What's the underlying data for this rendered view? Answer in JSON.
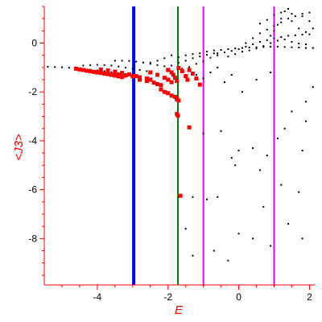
{
  "chart_data": {
    "type": "scatter",
    "xlabel": "E",
    "ylabel": "<J3>",
    "xlim": [
      -5.5,
      2.15
    ],
    "ylim": [
      -9.9,
      1.5
    ],
    "grid": false,
    "x_ticks": [
      -4,
      -2,
      0,
      2
    ],
    "x_tick_labels": [
      "-4",
      "-2",
      "0",
      "2"
    ],
    "y_ticks": [
      0,
      -2,
      -4,
      -6,
      -8
    ],
    "y_tick_labels": [
      "0",
      "-2",
      "-4",
      "-6",
      "-8"
    ],
    "vertical_lines": [
      {
        "x": -2.97,
        "color": "#0000ff",
        "width": "thick"
      },
      {
        "x": -1.72,
        "color": "#008000",
        "width": "normal"
      },
      {
        "x": -1.0,
        "color": "#ee00ee",
        "width": "normal"
      },
      {
        "x": 1.0,
        "color": "#ee00ee",
        "width": "normal"
      }
    ],
    "series": [
      {
        "color": "#000000",
        "marker": "small-dot",
        "points": [
          [
            -5.4,
            -0.97
          ],
          [
            -5.2,
            -0.98
          ],
          [
            -5.0,
            -0.99
          ],
          [
            -4.8,
            -1.01
          ],
          [
            -4.6,
            -1.03
          ],
          [
            -4.4,
            -1.06
          ],
          [
            -4.2,
            -1.09
          ],
          [
            -4.0,
            -1.12
          ],
          [
            -3.8,
            -1.15
          ],
          [
            -3.6,
            -1.19
          ],
          [
            -3.4,
            -1.23
          ],
          [
            -3.2,
            -1.27
          ],
          [
            -3.0,
            -1.31
          ],
          [
            -2.8,
            -1.35
          ],
          [
            -4.4,
            -0.92
          ],
          [
            -4.2,
            -0.9
          ],
          [
            -4.0,
            -0.89
          ],
          [
            -3.8,
            -0.9
          ],
          [
            -3.6,
            -0.92
          ],
          [
            -3.4,
            -0.96
          ],
          [
            -3.2,
            -1.0
          ],
          [
            -3.0,
            -1.05
          ],
          [
            -2.8,
            -1.1
          ],
          [
            -2.6,
            -1.15
          ],
          [
            -3.5,
            -0.72
          ],
          [
            -3.3,
            -0.72
          ],
          [
            -3.1,
            -0.73
          ],
          [
            -2.9,
            -0.76
          ],
          [
            -2.7,
            -0.8
          ],
          [
            -2.5,
            -0.85
          ],
          [
            -2.3,
            -0.9
          ],
          [
            -2.1,
            -0.95
          ],
          [
            -2.5,
            -0.8
          ],
          [
            -2.3,
            -0.72
          ],
          [
            -2.1,
            -0.62
          ],
          [
            -1.9,
            -0.5
          ],
          [
            -1.7,
            -0.58
          ],
          [
            -1.5,
            -0.5
          ],
          [
            -1.3,
            -0.45
          ],
          [
            -1.1,
            -0.42
          ],
          [
            -1.9,
            -0.92
          ],
          [
            -1.7,
            -0.8
          ],
          [
            -1.5,
            -0.72
          ],
          [
            -1.3,
            -0.62
          ],
          [
            -1.1,
            -0.55
          ],
          [
            -0.9,
            -0.48
          ],
          [
            -0.7,
            -0.42
          ],
          [
            -1.6,
            -1.05
          ],
          [
            -1.4,
            -0.98
          ],
          [
            -1.2,
            -0.85
          ],
          [
            -1.0,
            -0.75
          ],
          [
            -0.8,
            -0.6
          ],
          [
            -0.6,
            -0.5
          ],
          [
            -0.9,
            -0.35
          ],
          [
            -0.7,
            -0.3
          ],
          [
            -0.5,
            -0.28
          ],
          [
            -0.3,
            -0.25
          ],
          [
            -0.1,
            -0.22
          ],
          [
            0.1,
            -0.2
          ],
          [
            0.3,
            -0.18
          ],
          [
            0.5,
            -0.17
          ],
          [
            0.7,
            -0.16
          ],
          [
            0.9,
            -0.15
          ],
          [
            1.1,
            -0.15
          ],
          [
            1.3,
            -0.16
          ],
          [
            1.5,
            -0.17
          ],
          [
            1.7,
            -0.18
          ],
          [
            1.9,
            -0.2
          ],
          [
            2.1,
            -0.2
          ],
          [
            -0.6,
            -0.42
          ],
          [
            -0.4,
            -0.38
          ],
          [
            -0.2,
            -0.32
          ],
          [
            0.0,
            -0.25
          ],
          [
            0.2,
            -0.15
          ],
          [
            0.4,
            -0.05
          ],
          [
            0.6,
            0.05
          ],
          [
            0.8,
            0.12
          ],
          [
            1.0,
            0.2
          ],
          [
            1.2,
            0.25
          ],
          [
            1.4,
            0.3
          ],
          [
            1.6,
            0.32
          ],
          [
            1.8,
            0.35
          ],
          [
            2.0,
            0.36
          ],
          [
            -0.3,
            -0.55
          ],
          [
            -0.1,
            -0.45
          ],
          [
            0.1,
            -0.35
          ],
          [
            0.3,
            -0.3
          ],
          [
            0.5,
            -0.22
          ],
          [
            0.7,
            -0.12
          ],
          [
            0.9,
            0.0
          ],
          [
            1.1,
            0.1
          ],
          [
            1.3,
            0.15
          ],
          [
            1.5,
            0.05
          ],
          [
            1.7,
            -0.02
          ],
          [
            1.9,
            -0.05
          ],
          [
            0.2,
            0.0
          ],
          [
            0.4,
            0.2
          ],
          [
            0.6,
            0.4
          ],
          [
            0.8,
            0.55
          ],
          [
            1.0,
            0.7
          ],
          [
            1.2,
            0.85
          ],
          [
            1.4,
            1.0
          ],
          [
            1.6,
            1.1
          ],
          [
            1.8,
            1.2
          ],
          [
            2.0,
            1.25
          ],
          [
            0.9,
            0.3
          ],
          [
            1.0,
            0.5
          ],
          [
            1.1,
            0.75
          ],
          [
            1.2,
            1.0
          ],
          [
            1.3,
            1.3
          ],
          [
            1.4,
            1.4
          ],
          [
            1.5,
            0.9
          ],
          [
            1.7,
            0.6
          ],
          [
            1.9,
            0.45
          ],
          [
            2.1,
            0.6
          ],
          [
            0.6,
            0.8
          ],
          [
            0.8,
            0.95
          ],
          [
            1.0,
            1.15
          ],
          [
            1.2,
            1.25
          ],
          [
            1.5,
            1.2
          ],
          [
            1.8,
            1.1
          ],
          [
            2.0,
            0.9
          ],
          [
            -1.2,
            -1.3
          ],
          [
            -1.0,
            -1.45
          ],
          [
            -0.8,
            -1.2
          ],
          [
            -0.6,
            -1.0
          ],
          [
            -0.4,
            -1.6
          ],
          [
            -0.2,
            -1.3
          ],
          [
            0.1,
            -2.0
          ],
          [
            0.5,
            -1.5
          ],
          [
            0.9,
            -1.2
          ],
          [
            1.5,
            -2.8
          ],
          [
            1.9,
            -2.4
          ],
          [
            2.1,
            -1.8
          ],
          [
            -1.0,
            -3.7
          ],
          [
            -0.5,
            -3.6
          ],
          [
            -0.2,
            -4.7
          ],
          [
            -0.1,
            -5.0
          ],
          [
            0.0,
            -4.4
          ],
          [
            0.4,
            -4.3
          ],
          [
            0.8,
            -4.6
          ],
          [
            1.1,
            -3.9
          ],
          [
            1.3,
            -3.5
          ],
          [
            1.8,
            -4.4
          ],
          [
            1.9,
            -3.2
          ],
          [
            -1.7,
            -6.3
          ],
          [
            -1.3,
            -6.3
          ],
          [
            -0.9,
            -6.4
          ],
          [
            -0.6,
            -6.3
          ],
          [
            0.6,
            -5.2
          ],
          [
            0.7,
            -6.7
          ],
          [
            1.2,
            -5.8
          ],
          [
            1.7,
            -6.1
          ],
          [
            -1.5,
            -7.6
          ],
          [
            -1.3,
            -8.7
          ],
          [
            -0.7,
            -8.5
          ],
          [
            -0.3,
            -8.9
          ],
          [
            0.0,
            -7.8
          ],
          [
            0.4,
            -8.0
          ],
          [
            0.9,
            -8.3
          ],
          [
            1.4,
            -7.4
          ],
          [
            1.8,
            -8.0
          ]
        ]
      },
      {
        "color": "#ff0000",
        "marker": "square",
        "points": [
          [
            -4.6,
            -1.05
          ],
          [
            -4.5,
            -1.08
          ],
          [
            -4.4,
            -1.1
          ],
          [
            -4.3,
            -1.13
          ],
          [
            -4.2,
            -1.15
          ],
          [
            -4.1,
            -1.18
          ],
          [
            -4.0,
            -1.2
          ],
          [
            -3.9,
            -1.22
          ],
          [
            -3.8,
            -1.25
          ],
          [
            -3.7,
            -1.27
          ],
          [
            -3.6,
            -1.3
          ],
          [
            -3.5,
            -1.33
          ],
          [
            -3.4,
            -1.36
          ],
          [
            -3.3,
            -1.39
          ],
          [
            -3.9,
            -1.08
          ],
          [
            -3.7,
            -1.12
          ],
          [
            -3.5,
            -1.17
          ],
          [
            -3.3,
            -1.22
          ],
          [
            -3.1,
            -1.28
          ],
          [
            -2.9,
            -1.35
          ],
          [
            -3.4,
            -1.3
          ],
          [
            -3.2,
            -1.33
          ],
          [
            -3.0,
            -1.36
          ],
          [
            -2.8,
            -1.4
          ],
          [
            -2.6,
            -1.45
          ],
          [
            -2.5,
            -1.5
          ],
          [
            -2.8,
            -1.5
          ],
          [
            -2.6,
            -1.55
          ],
          [
            -2.4,
            -1.62
          ],
          [
            -2.3,
            -1.68
          ],
          [
            -2.2,
            -1.72
          ],
          [
            -2.5,
            -1.2
          ],
          [
            -2.3,
            -1.3
          ],
          [
            -2.1,
            -1.42
          ],
          [
            -2.0,
            -1.5
          ],
          [
            -1.9,
            -1.6
          ],
          [
            -2.2,
            -1.9
          ],
          [
            -2.1,
            -2.0
          ],
          [
            -2.0,
            -2.05
          ],
          [
            -1.9,
            -2.15
          ],
          [
            -1.8,
            -2.2
          ],
          [
            -1.75,
            -2.3
          ],
          [
            -2.0,
            -1.1
          ],
          [
            -1.9,
            -1.2
          ],
          [
            -1.85,
            -1.3
          ],
          [
            -1.8,
            -1.42
          ],
          [
            -1.75,
            -1.55
          ],
          [
            -1.4,
            -1.1
          ],
          [
            -1.3,
            -1.25
          ],
          [
            -1.2,
            -1.45
          ],
          [
            -1.1,
            -1.7
          ],
          [
            -1.7,
            -1.02
          ],
          [
            -1.6,
            -1.15
          ],
          [
            -1.5,
            -1.35
          ],
          [
            -1.45,
            -1.5
          ],
          [
            -1.75,
            -2.25
          ],
          [
            -1.7,
            -2.35
          ],
          [
            -1.75,
            -2.9
          ],
          [
            -1.72,
            -2.97
          ],
          [
            -1.4,
            -3.45
          ],
          [
            -1.65,
            -6.25
          ]
        ]
      }
    ]
  }
}
